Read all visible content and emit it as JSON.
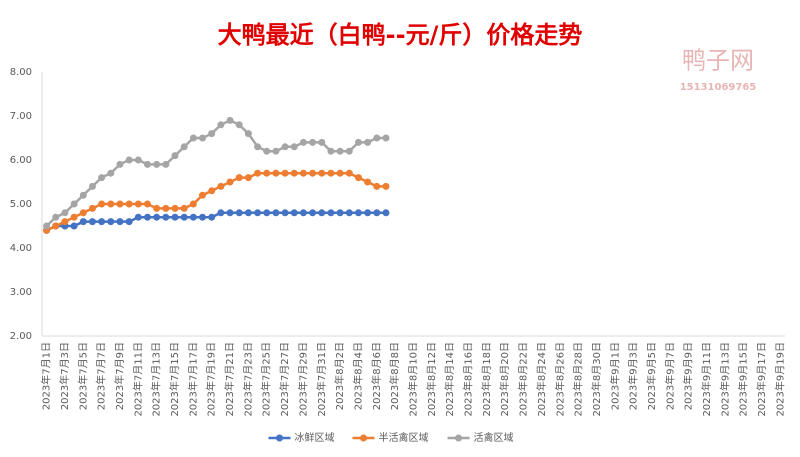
{
  "chart_data": {
    "type": "line",
    "title": "大鸭最近（白鸭--元/斤）价格走势",
    "watermark": [
      "鸭子网",
      "15131069765"
    ],
    "categories": [
      "2023年7月1日",
      null,
      "2023年7月3日",
      null,
      "2023年7月5日",
      null,
      "2023年7月7日",
      null,
      "2023年7月9日",
      null,
      "2023年7月11日",
      null,
      "2023年7月13日",
      null,
      "2023年7月15日",
      null,
      "2023年7月17日",
      null,
      "2023年7月19日",
      null,
      "2023年7月21日",
      null,
      "2023年7月23日",
      null,
      "2023年7月25日",
      null,
      "2023年7月27日",
      null,
      "2023年7月29日",
      null,
      "2023年7月31日",
      null,
      "2023年8月2日",
      null,
      "2023年8月4日",
      null,
      "2023年8月6日",
      null,
      "2023年8月8日",
      null,
      "2023年8月10日",
      null,
      "2023年8月12日",
      null,
      "2023年8月14日",
      null,
      "2023年8月16日",
      null,
      "2023年8月18日",
      null,
      "2023年8月20日",
      null,
      "2023年8月22日",
      null,
      "2023年8月24日",
      null,
      "2023年8月26日",
      null,
      "2023年8月28日",
      null,
      "2023年8月30日",
      null,
      "2023年9月1日",
      null,
      "2023年9月3日",
      null,
      "2023年9月5日",
      null,
      "2023年9月7日",
      null,
      "2023年9月9日",
      null,
      "2023年9月11日",
      null,
      "2023年9月13日",
      null,
      "2023年9月15日",
      null,
      "2023年9月17日",
      null,
      "2023年9月19日"
    ],
    "series": [
      {
        "name": "冰鲜区域",
        "color": "#4472c4",
        "values": [
          4.4,
          4.5,
          4.5,
          4.5,
          4.6,
          4.6,
          4.6,
          4.6,
          4.6,
          4.6,
          4.7,
          4.7,
          4.7,
          4.7,
          4.7,
          4.7,
          4.7,
          4.7,
          4.7,
          4.8,
          4.8,
          4.8,
          4.8,
          4.8,
          4.8,
          4.8,
          4.8,
          4.8,
          4.8,
          4.8,
          4.8,
          4.8,
          4.8,
          4.8,
          4.8,
          4.8,
          4.8,
          4.8,
          null,
          null,
          null,
          null,
          null,
          null,
          null,
          null,
          null,
          null,
          null,
          null,
          null,
          null,
          null,
          null,
          null,
          null,
          null,
          null,
          null,
          null,
          null,
          null,
          null,
          null,
          null,
          null,
          null,
          null,
          null,
          null,
          null,
          null,
          null,
          null,
          null,
          null,
          null,
          null,
          null,
          null,
          null
        ]
      },
      {
        "name": "半活禽区域",
        "color": "#ed7d31",
        "values": [
          4.4,
          4.5,
          4.6,
          4.7,
          4.8,
          4.9,
          5.0,
          5.0,
          5.0,
          5.0,
          5.0,
          5.0,
          4.9,
          4.9,
          4.9,
          4.9,
          5.0,
          5.2,
          5.3,
          5.4,
          5.5,
          5.6,
          5.6,
          5.7,
          5.7,
          5.7,
          5.7,
          5.7,
          5.7,
          5.7,
          5.7,
          5.7,
          5.7,
          5.7,
          5.6,
          5.5,
          5.4,
          5.4,
          null,
          null,
          null,
          null,
          null,
          null,
          null,
          null,
          null,
          null,
          null,
          null,
          null,
          null,
          null,
          null,
          null,
          null,
          null,
          null,
          null,
          null,
          null,
          null,
          null,
          null,
          null,
          null,
          null,
          null,
          null,
          null,
          null,
          null,
          null,
          null,
          null,
          null,
          null,
          null,
          null,
          null,
          null
        ]
      },
      {
        "name": "活禽区域",
        "color": "#a5a5a5",
        "values": [
          4.5,
          4.7,
          4.8,
          5.0,
          5.2,
          5.4,
          5.6,
          5.7,
          5.9,
          6.0,
          6.0,
          5.9,
          5.9,
          5.9,
          6.1,
          6.3,
          6.5,
          6.5,
          6.6,
          6.8,
          6.9,
          6.8,
          6.6,
          6.3,
          6.2,
          6.2,
          6.3,
          6.3,
          6.4,
          6.4,
          6.4,
          6.2,
          6.2,
          6.2,
          6.4,
          6.4,
          6.5,
          6.5,
          null,
          null,
          null,
          null,
          null,
          null,
          null,
          null,
          null,
          null,
          null,
          null,
          null,
          null,
          null,
          null,
          null,
          null,
          null,
          null,
          null,
          null,
          null,
          null,
          null,
          null,
          null,
          null,
          null,
          null,
          null,
          null,
          null,
          null,
          null,
          null,
          null,
          null,
          null,
          null,
          null,
          null,
          null
        ]
      }
    ],
    "ylim": [
      2,
      8
    ],
    "yticks": [
      {
        "value": 2,
        "label": "2.00"
      },
      {
        "value": 3,
        "label": "3.00"
      },
      {
        "value": 4,
        "label": "4.00"
      },
      {
        "value": 5,
        "label": "5.00"
      },
      {
        "value": 6,
        "label": "6.00"
      },
      {
        "value": 7,
        "label": "7.00"
      },
      {
        "value": 8,
        "label": "8.00"
      }
    ],
    "grid": false,
    "legend": "bottom"
  }
}
